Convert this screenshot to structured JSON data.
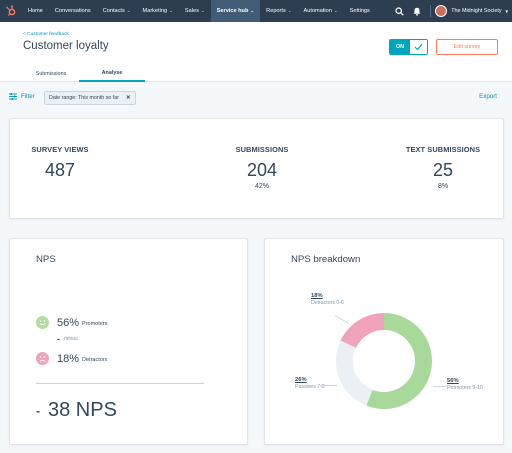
{
  "nav": {
    "items": [
      {
        "label": "Home",
        "dropdown": false,
        "active": false
      },
      {
        "label": "Conversations",
        "dropdown": false,
        "active": false
      },
      {
        "label": "Contacts",
        "dropdown": true,
        "active": false
      },
      {
        "label": "Marketing",
        "dropdown": true,
        "active": false
      },
      {
        "label": "Sales",
        "dropdown": true,
        "active": false
      },
      {
        "label": "Service hub",
        "dropdown": true,
        "active": true
      },
      {
        "label": "Reports",
        "dropdown": true,
        "active": false
      },
      {
        "label": "Automation",
        "dropdown": true,
        "active": false
      },
      {
        "label": "Settings",
        "dropdown": false,
        "active": false
      }
    ],
    "account_name": "The Midnight Society",
    "colors": {
      "bar": "#2d3e50",
      "active": "#425b76",
      "logo": "#ff7a59"
    }
  },
  "header": {
    "breadcrumb": "< Customer feedback",
    "title": "Customer loyalty",
    "toggle_label": "ON",
    "edit_button": "Edit survey",
    "tabs": [
      "Submissions",
      "Analyse"
    ],
    "active_tab": "Analyse"
  },
  "filters": {
    "filter_label": "Filter",
    "date_range": "Date range: This month so far",
    "export_label": "Export"
  },
  "stats": [
    {
      "label": "SURVEY VIEWS",
      "value": "487",
      "sub": ""
    },
    {
      "label": "SUBMISSIONS",
      "value": "204",
      "sub": "42%"
    },
    {
      "label": "TEXT SUBMISSIONS",
      "value": "25",
      "sub": "8%"
    }
  ],
  "nps": {
    "title": "NPS",
    "promoters_value": "56%",
    "promoters_label": "Promoters",
    "minus_label": "minus",
    "detractors_value": "18%",
    "detractors_label": "Detractors",
    "total": "38 NPS"
  },
  "breakdown": {
    "title": "NPS breakdown",
    "segments": [
      {
        "pct": "18%",
        "name": "Detractors 0-6",
        "value": 18,
        "color": "#f2a3bc"
      },
      {
        "pct": "26%",
        "name": "Passives 7-8",
        "value": 26,
        "color": "#eaf0f6"
      },
      {
        "pct": "56%",
        "name": "Promoters 9-10",
        "value": 56,
        "color": "#a8d99a"
      }
    ]
  },
  "colors": {
    "accent": "#00a4bd",
    "link": "#0091ae",
    "orange": "#ff7a59",
    "text": "#33475b"
  }
}
